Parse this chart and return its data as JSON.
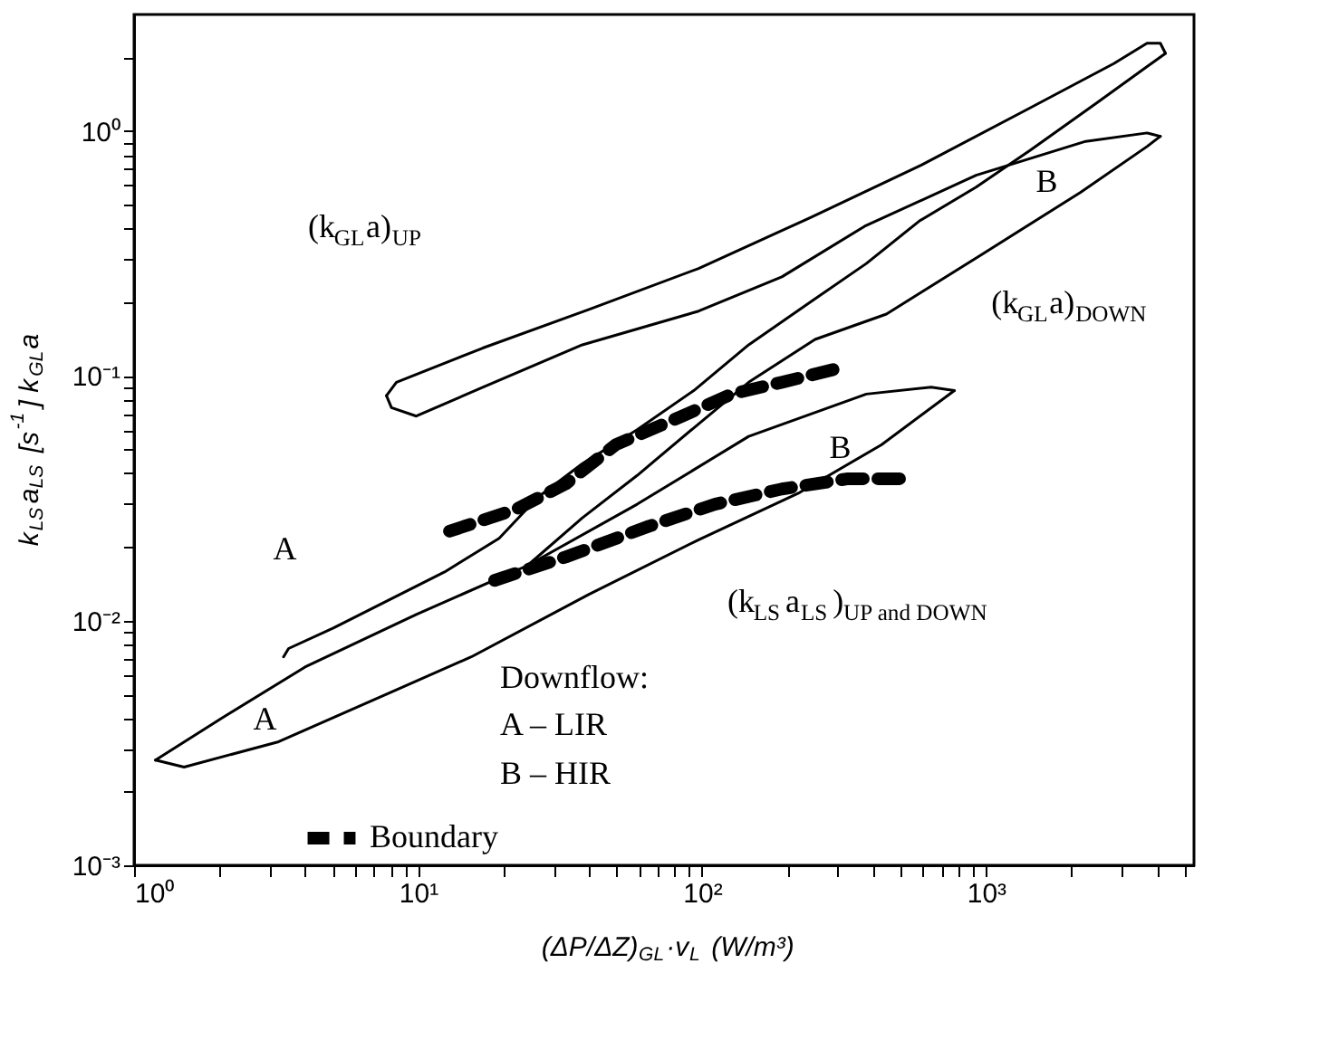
{
  "chart_data": {
    "type": "line",
    "xlabel": "(ΔP/ΔZ)$_{GL}$·v$_{L}$ (W/m³)",
    "ylabel": "k$_{LS}$a$_{LS}$ [s$^{-1}$] k$_{GL}$a",
    "log": "xy",
    "grid": false,
    "legend": "bottom",
    "xlim": [
      1,
      5400
    ],
    "ylim": [
      0.001,
      3
    ],
    "xticks": [
      {
        "value": 1,
        "label": "10⁰"
      },
      {
        "value": 2,
        "label": null
      },
      {
        "value": 3,
        "label": null
      },
      {
        "value": 4,
        "label": null
      },
      {
        "value": 5,
        "label": null
      },
      {
        "value": 6,
        "label": null
      },
      {
        "value": 7,
        "label": null
      },
      {
        "value": 8,
        "label": null
      },
      {
        "value": 9,
        "label": null
      },
      {
        "value": 10,
        "label": "10¹"
      },
      {
        "value": 20,
        "label": null
      },
      {
        "value": 30,
        "label": null
      },
      {
        "value": 40,
        "label": null
      },
      {
        "value": 50,
        "label": null
      },
      {
        "value": 60,
        "label": null
      },
      {
        "value": 70,
        "label": null
      },
      {
        "value": 80,
        "label": null
      },
      {
        "value": 90,
        "label": null
      },
      {
        "value": 100,
        "label": "10²"
      },
      {
        "value": 200,
        "label": null
      },
      {
        "value": 300,
        "label": null
      },
      {
        "value": 400,
        "label": null
      },
      {
        "value": 500,
        "label": null
      },
      {
        "value": 600,
        "label": null
      },
      {
        "value": 700,
        "label": null
      },
      {
        "value": 800,
        "label": null
      },
      {
        "value": 900,
        "label": null
      },
      {
        "value": 1000,
        "label": "10³"
      },
      {
        "value": 2000,
        "label": null
      },
      {
        "value": 3000,
        "label": null
      },
      {
        "value": 4000,
        "label": null
      },
      {
        "value": 5000,
        "label": null
      }
    ],
    "yticks": [
      {
        "value": 0.001,
        "label": "10⁻³"
      },
      {
        "value": 0.002,
        "label": null
      },
      {
        "value": 0.003,
        "label": null
      },
      {
        "value": 0.004,
        "label": null
      },
      {
        "value": 0.005,
        "label": null
      },
      {
        "value": 0.006,
        "label": null
      },
      {
        "value": 0.007,
        "label": null
      },
      {
        "value": 0.008,
        "label": null
      },
      {
        "value": 0.009,
        "label": null
      },
      {
        "value": 0.01,
        "label": "10⁻²"
      },
      {
        "value": 0.02,
        "label": null
      },
      {
        "value": 0.03,
        "label": null
      },
      {
        "value": 0.04,
        "label": null
      },
      {
        "value": 0.05,
        "label": null
      },
      {
        "value": 0.06,
        "label": null
      },
      {
        "value": 0.07,
        "label": null
      },
      {
        "value": 0.08,
        "label": null
      },
      {
        "value": 0.09,
        "label": null
      },
      {
        "value": 0.1,
        "label": "10⁻¹"
      },
      {
        "value": 0.2,
        "label": null
      },
      {
        "value": 0.3,
        "label": null
      },
      {
        "value": 0.4,
        "label": null
      },
      {
        "value": 0.5,
        "label": null
      },
      {
        "value": 0.6,
        "label": null
      },
      {
        "value": 0.7,
        "label": null
      },
      {
        "value": 0.8,
        "label": null
      },
      {
        "value": 0.9,
        "label": null
      },
      {
        "value": 1,
        "label": "10⁰"
      },
      {
        "value": 2,
        "label": null
      }
    ],
    "series": [
      {
        "color": "#000000",
        "line_style": "solid",
        "x": [
          7.74,
          8.39,
          16.9,
          40.0,
          97.3,
          240,
          592,
          1439,
          2818,
          3690,
          4111,
          4285
        ],
        "values": [
          0.083,
          0.0942,
          0.13,
          0.187,
          0.275,
          0.443,
          0.727,
          1.25,
          1.89,
          2.29,
          2.29,
          2.08
        ]
      },
      {
        "color": "#000000",
        "line_style": "solid",
        "x": [
          3.36,
          3.5,
          5.03,
          12.4,
          19.3,
          26.4,
          37.9,
          59.1,
          93.5,
          146,
          240,
          379,
          583,
          923,
          1439,
          2466,
          4285
        ],
        "values": [
          0.00711,
          0.00769,
          0.00933,
          0.0158,
          0.0217,
          0.0319,
          0.0438,
          0.0603,
          0.0871,
          0.134,
          0.2,
          0.288,
          0.43,
          0.591,
          0.839,
          1.31,
          2.08
        ]
      },
      {
        "color": "#000000",
        "line_style": "solid",
        "x": [
          1.19,
          2.04,
          4.0,
          9.86,
          24.3,
          37.9,
          59.1,
          93.5,
          146,
          250,
          446,
          960,
          2153,
          3690,
          4111
        ],
        "values": [
          0.00269,
          0.004,
          0.00646,
          0.0106,
          0.0168,
          0.0263,
          0.0392,
          0.0613,
          0.0942,
          0.141,
          0.179,
          0.312,
          0.563,
          0.866,
          0.953
        ]
      },
      {
        "color": "#000000",
        "line_style": "solid",
        "x": [
          7.74,
          8.06,
          9.86,
          16.9,
          37.9,
          97.3,
          191,
          374,
          923,
          2244,
          3690,
          4111
        ],
        "values": [
          0.083,
          0.0742,
          0.0685,
          0.0899,
          0.134,
          0.184,
          0.254,
          0.409,
          0.661,
          0.909,
          0.984,
          0.953
        ]
      },
      {
        "color": "#000000",
        "line_style": "solid",
        "x": [
          24.3,
          59.1,
          146,
          379,
          641,
          774
        ],
        "values": [
          0.0168,
          0.0299,
          0.0566,
          0.0843,
          0.0899,
          0.0871
        ]
      },
      {
        "color": "#000000",
        "line_style": "solid",
        "x": [
          1.19,
          1.5,
          3.23,
          15.4,
          40.0,
          97.3,
          221,
          428,
          774
        ],
        "values": [
          0.00269,
          0.00252,
          0.0032,
          0.00711,
          0.0128,
          0.0214,
          0.0334,
          0.0523,
          0.0871
        ]
      },
      {
        "name": "Boundary",
        "color": "#000000",
        "line_style": "dashed",
        "x": [
          12.9,
          22.1,
          33.1,
          49.6,
          85.1,
          127,
          191,
          298
        ],
        "values": [
          0.0232,
          0.0285,
          0.0362,
          0.0523,
          0.0685,
          0.0843,
          0.0942,
          0.107
        ]
      },
      {
        "color": "#000000",
        "line_style": "dashed",
        "x": [
          18.6,
          33.1,
          65.0,
          111,
          191,
          327,
          517
        ],
        "values": [
          0.0146,
          0.0182,
          0.0243,
          0.0299,
          0.0345,
          0.038,
          0.038
        ]
      }
    ],
    "annotations": [
      "(k$_{GL}$a)$_{UP}$",
      "B",
      "(k$_{GL}$a)$_{DOWN}$",
      "A",
      "B",
      "(k$_{LS}$a$_{LS}$)$_{UP and DOWN}$",
      "A",
      "Downflow:",
      "A – LIR",
      "B – HIR"
    ]
  }
}
